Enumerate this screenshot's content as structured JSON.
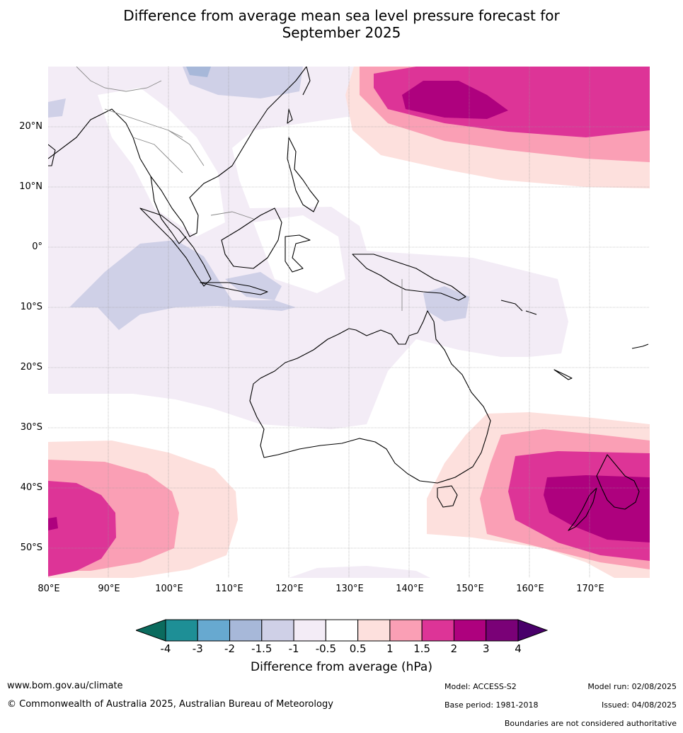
{
  "title_line1": "Difference from average mean sea level pressure forecast for",
  "title_line2": "September 2025",
  "lat_labels": [
    "20°N",
    "10°N",
    "0°",
    "10°S",
    "20°S",
    "30°S",
    "40°S",
    "50°S"
  ],
  "lon_labels": [
    "80°E",
    "90°E",
    "100°E",
    "110°E",
    "120°E",
    "130°E",
    "140°E",
    "150°E",
    "160°E",
    "170°E"
  ],
  "colorbar": {
    "ticks": [
      "-4",
      "-3",
      "-2",
      "-1.5",
      "-1",
      "-0.5",
      "0.5",
      "1",
      "1.5",
      "2",
      "3",
      "4"
    ],
    "colors": [
      "#1e8f96",
      "#67a9d0",
      "#a7b8d9",
      "#cfd0e7",
      "#f3ecf6",
      "#ffffff",
      "#fde0dd",
      "#fa9fb5",
      "#dd3497",
      "#ae017e",
      "#7a0177"
    ],
    "low_extend_color": "#0b6b5e",
    "high_extend_color": "#49006a",
    "label": "Difference from average (hPa)"
  },
  "footer": {
    "website": "www.bom.gov.au/climate",
    "copyright": "© Commonwealth of Australia 2025, Australian Bureau of Meteorology",
    "model": "Model: ACCESS-S2",
    "base_period": "Base period: 1981-2018",
    "model_run": "Model run: 02/08/2025",
    "issued": "Issued: 04/08/2025",
    "disclaimer": "Boundaries are not considered authoritative"
  }
}
